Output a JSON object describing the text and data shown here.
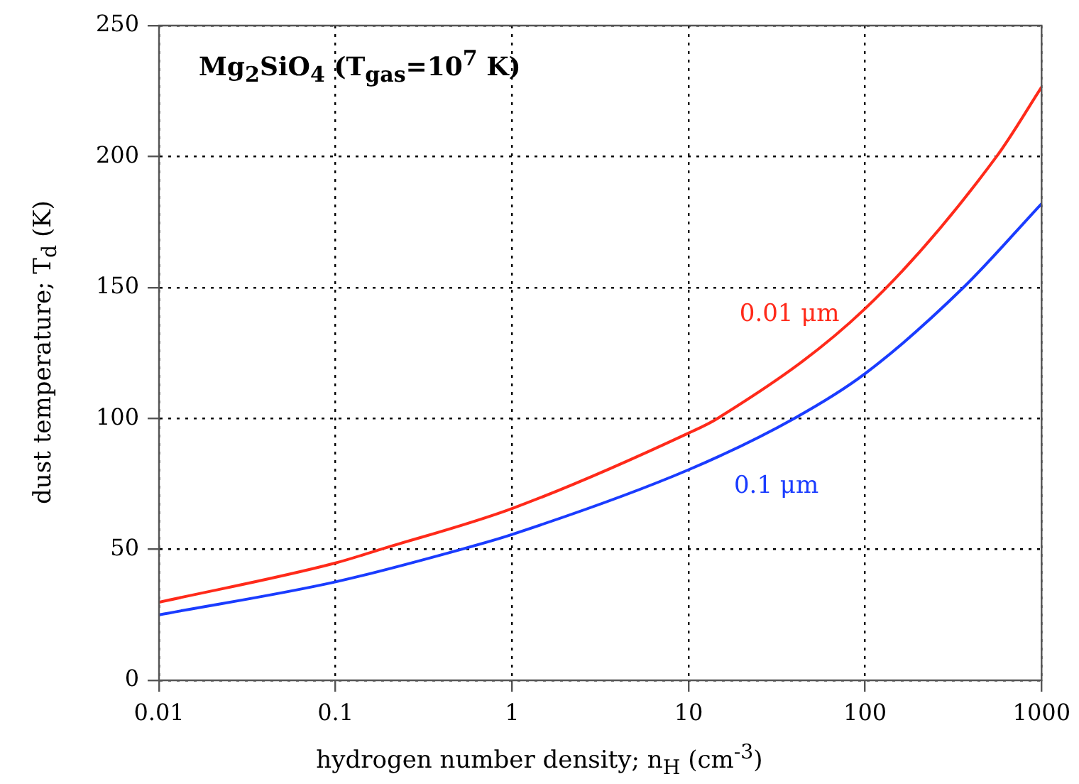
{
  "chart_data": {
    "type": "line",
    "title": "Mg$_{2}$SiO$_{4}$ (T$_{gas}$=10$^{7}$ K)",
    "xlabel": "hydrogen number density; n$_{H}$ (cm$^{-3}$)",
    "ylabel": "dust temperature; T$_{d}$ (K)",
    "log": "x",
    "xlim": [
      0.01,
      1000
    ],
    "xticks": [
      0.01,
      0.1,
      1,
      10,
      100,
      1000
    ],
    "ylim": [
      0,
      250
    ],
    "yticks": [
      0,
      50,
      100,
      150,
      200,
      250
    ],
    "grid": true,
    "legend": false,
    "line_style": "solid",
    "marker": "none",
    "series": [
      {
        "name": "0.01 μm",
        "color": "#ff2a1a",
        "x": [
          0.01,
          0.1,
          0.18,
          1,
          10,
          14.6,
          100,
          556,
          1000
        ],
        "values": [
          29.8,
          44.8,
          50,
          65.6,
          94.4,
          100,
          141.9,
          200,
          226.5
        ]
      },
      {
        "name": "0.1 μm",
        "color": "#1a3cff",
        "x": [
          0.01,
          0.1,
          0.515,
          1,
          10,
          39.7,
          100,
          361,
          1000
        ],
        "values": [
          25,
          37.6,
          50,
          55.7,
          80.4,
          100,
          117.1,
          150,
          182
        ]
      }
    ]
  }
}
